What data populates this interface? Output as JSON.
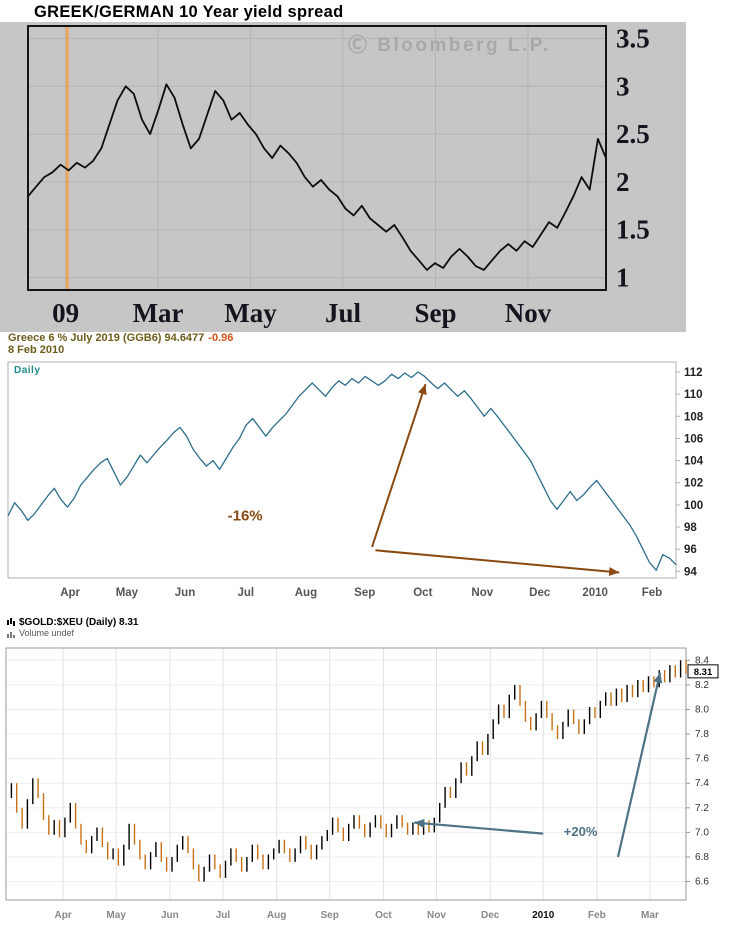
{
  "chart_data": [
    {
      "type": "line",
      "title": "GREEK/GERMAN 10 Year yield spread",
      "watermark": "Ⓒ Bloomberg  L.P.",
      "x_tick_labels": [
        "09",
        "Mar",
        "May",
        "Jul",
        "Sep",
        "Nov"
      ],
      "x_tick_pos": [
        0.065,
        0.225,
        0.385,
        0.545,
        0.705,
        0.865
      ],
      "yticks": [
        1,
        1.5,
        2,
        2.5,
        3,
        3.5
      ],
      "ytick_labels": [
        "1",
        "1.5",
        "2",
        "2.5",
        "3",
        "3.5"
      ],
      "ylim": [
        0.87,
        3.63
      ],
      "line_color": "#0d0d0d",
      "highlight_x": 0.068,
      "highlight_color": "#eda75c",
      "values": [
        1.85,
        1.95,
        2.05,
        2.1,
        2.18,
        2.12,
        2.2,
        2.15,
        2.22,
        2.35,
        2.6,
        2.85,
        3.0,
        2.92,
        2.65,
        2.5,
        2.75,
        3.02,
        2.88,
        2.6,
        2.35,
        2.45,
        2.7,
        2.95,
        2.85,
        2.65,
        2.72,
        2.6,
        2.5,
        2.35,
        2.25,
        2.38,
        2.3,
        2.2,
        2.05,
        1.95,
        2.02,
        1.92,
        1.85,
        1.72,
        1.65,
        1.75,
        1.62,
        1.55,
        1.48,
        1.55,
        1.42,
        1.28,
        1.18,
        1.08,
        1.15,
        1.1,
        1.22,
        1.3,
        1.22,
        1.12,
        1.08,
        1.18,
        1.28,
        1.35,
        1.28,
        1.38,
        1.32,
        1.45,
        1.58,
        1.52,
        1.68,
        1.85,
        2.05,
        1.92,
        2.45,
        2.25
      ]
    },
    {
      "type": "line",
      "title": "Greece 6 % July 2019 (GGB6) 94.6477",
      "change": "-0.96",
      "date": "8 Feb 2010",
      "freq_label": "Daily",
      "x_tick_labels": [
        "Apr",
        "May",
        "Jun",
        "Jul",
        "Aug",
        "Sep",
        "Oct",
        "Nov",
        "Dec",
        "2010",
        "Feb"
      ],
      "x_tick_pos": [
        0.093,
        0.178,
        0.265,
        0.356,
        0.446,
        0.534,
        0.621,
        0.71,
        0.796,
        0.879,
        0.964
      ],
      "yticks": [
        94,
        96,
        98,
        100,
        102,
        104,
        106,
        108,
        110,
        112
      ],
      "ytick_labels": [
        "94",
        "96",
        "98",
        "100",
        "102",
        "104",
        "106",
        "108",
        "110",
        "112"
      ],
      "ylim": [
        93.4,
        112.9
      ],
      "line_color": "#2d6e8c",
      "annotations": {
        "label": "-16%",
        "label_x": 0.355,
        "label_y": 98.6,
        "color": "#8a4a12",
        "arrows": [
          {
            "x1": 0.545,
            "y1": 96.2,
            "x2": 0.625,
            "y2": 110.9
          },
          {
            "x1": 0.55,
            "y1": 95.9,
            "x2": 0.915,
            "y2": 93.9
          }
        ]
      },
      "values": [
        99.0,
        100.2,
        99.5,
        98.6,
        99.2,
        100.0,
        100.8,
        101.5,
        100.5,
        99.8,
        100.6,
        101.8,
        102.5,
        103.2,
        103.8,
        104.2,
        103.0,
        101.8,
        102.5,
        103.5,
        104.5,
        103.8,
        104.5,
        105.2,
        105.8,
        106.5,
        107.0,
        106.2,
        105.0,
        104.2,
        103.5,
        104.0,
        103.2,
        104.2,
        105.2,
        106.0,
        107.2,
        107.8,
        107.0,
        106.2,
        107.0,
        107.6,
        108.2,
        109.0,
        109.8,
        110.4,
        111.0,
        110.4,
        109.8,
        110.6,
        111.2,
        110.8,
        111.4,
        111.0,
        111.6,
        111.2,
        110.8,
        111.2,
        111.8,
        111.4,
        111.9,
        111.5,
        112.0,
        111.6,
        111.0,
        110.5,
        111.0,
        110.4,
        109.8,
        110.3,
        109.6,
        108.8,
        108.0,
        108.7,
        108.0,
        107.2,
        106.4,
        105.6,
        104.8,
        104.0,
        102.8,
        101.6,
        100.4,
        99.6,
        100.4,
        101.2,
        100.4,
        100.9,
        101.6,
        102.2,
        101.4,
        100.6,
        99.8,
        99.0,
        98.2,
        97.2,
        96.0,
        94.8,
        94.1,
        95.5,
        95.2,
        94.6
      ]
    },
    {
      "type": "candle",
      "title": "$GOLD:$XEU (Daily) 8.31",
      "sub_label": "Volume undef",
      "last_value": "8.31",
      "x_tick_labels": [
        "Apr",
        "May",
        "Jun",
        "Jul",
        "Aug",
        "Sep",
        "Oct",
        "Nov",
        "Dec",
        "2010",
        "Feb",
        "Mar"
      ],
      "x_tick_pos": [
        0.084,
        0.162,
        0.241,
        0.319,
        0.398,
        0.476,
        0.555,
        0.633,
        0.712,
        0.79,
        0.869,
        0.947
      ],
      "yticks": [
        6.6,
        6.8,
        7.0,
        7.2,
        7.4,
        7.6,
        7.8,
        8.0,
        8.2,
        8.4
      ],
      "ytick_labels": [
        "6.6",
        "6.8",
        "7.0",
        "7.2",
        "7.4",
        "7.6",
        "7.8",
        "8.0",
        "8.2",
        "8.4"
      ],
      "ylim": [
        6.45,
        8.5
      ],
      "up_color": "#000000",
      "down_color": "#c87117",
      "annotations": {
        "label": "+20%",
        "label_x": 0.845,
        "label_y": 6.97,
        "color": "#4e7385",
        "arrows": [
          {
            "x1": 0.79,
            "y1": 6.99,
            "x2": 0.6,
            "y2": 7.08
          },
          {
            "x1": 0.9,
            "y1": 6.8,
            "x2": 0.962,
            "y2": 8.3
          }
        ]
      },
      "values": [
        7.3,
        7.38,
        7.18,
        7.05,
        7.25,
        7.42,
        7.3,
        7.12,
        7.0,
        7.08,
        6.98,
        7.1,
        7.22,
        7.05,
        6.92,
        6.85,
        6.95,
        7.02,
        6.9,
        6.8,
        6.85,
        6.75,
        6.88,
        7.05,
        6.92,
        6.8,
        6.72,
        6.82,
        6.9,
        6.78,
        6.7,
        6.78,
        6.88,
        6.95,
        6.85,
        6.72,
        6.62,
        6.7,
        6.8,
        6.72,
        6.65,
        6.75,
        6.85,
        6.78,
        6.7,
        6.78,
        6.88,
        6.8,
        6.72,
        6.8,
        6.85,
        6.92,
        6.85,
        6.78,
        6.85,
        6.95,
        6.88,
        6.8,
        6.88,
        6.95,
        7.0,
        7.1,
        7.02,
        6.95,
        7.05,
        7.12,
        7.05,
        6.98,
        7.06,
        7.12,
        7.05,
        6.98,
        7.05,
        7.12,
        7.06,
        7.0,
        7.06,
        7.0,
        7.08,
        7.02,
        7.1,
        7.22,
        7.35,
        7.3,
        7.42,
        7.55,
        7.48,
        7.6,
        7.72,
        7.65,
        7.78,
        7.9,
        8.02,
        7.95,
        8.1,
        8.18,
        8.05,
        7.92,
        7.85,
        7.95,
        8.05,
        7.95,
        7.85,
        7.78,
        7.88,
        7.98,
        7.9,
        7.82,
        7.9,
        8.0,
        7.95,
        8.05,
        8.12,
        8.05,
        8.15,
        8.08,
        8.18,
        8.12,
        8.22,
        8.16,
        8.25,
        8.2,
        8.3,
        8.24,
        8.34,
        8.28,
        8.38,
        8.31
      ]
    }
  ]
}
